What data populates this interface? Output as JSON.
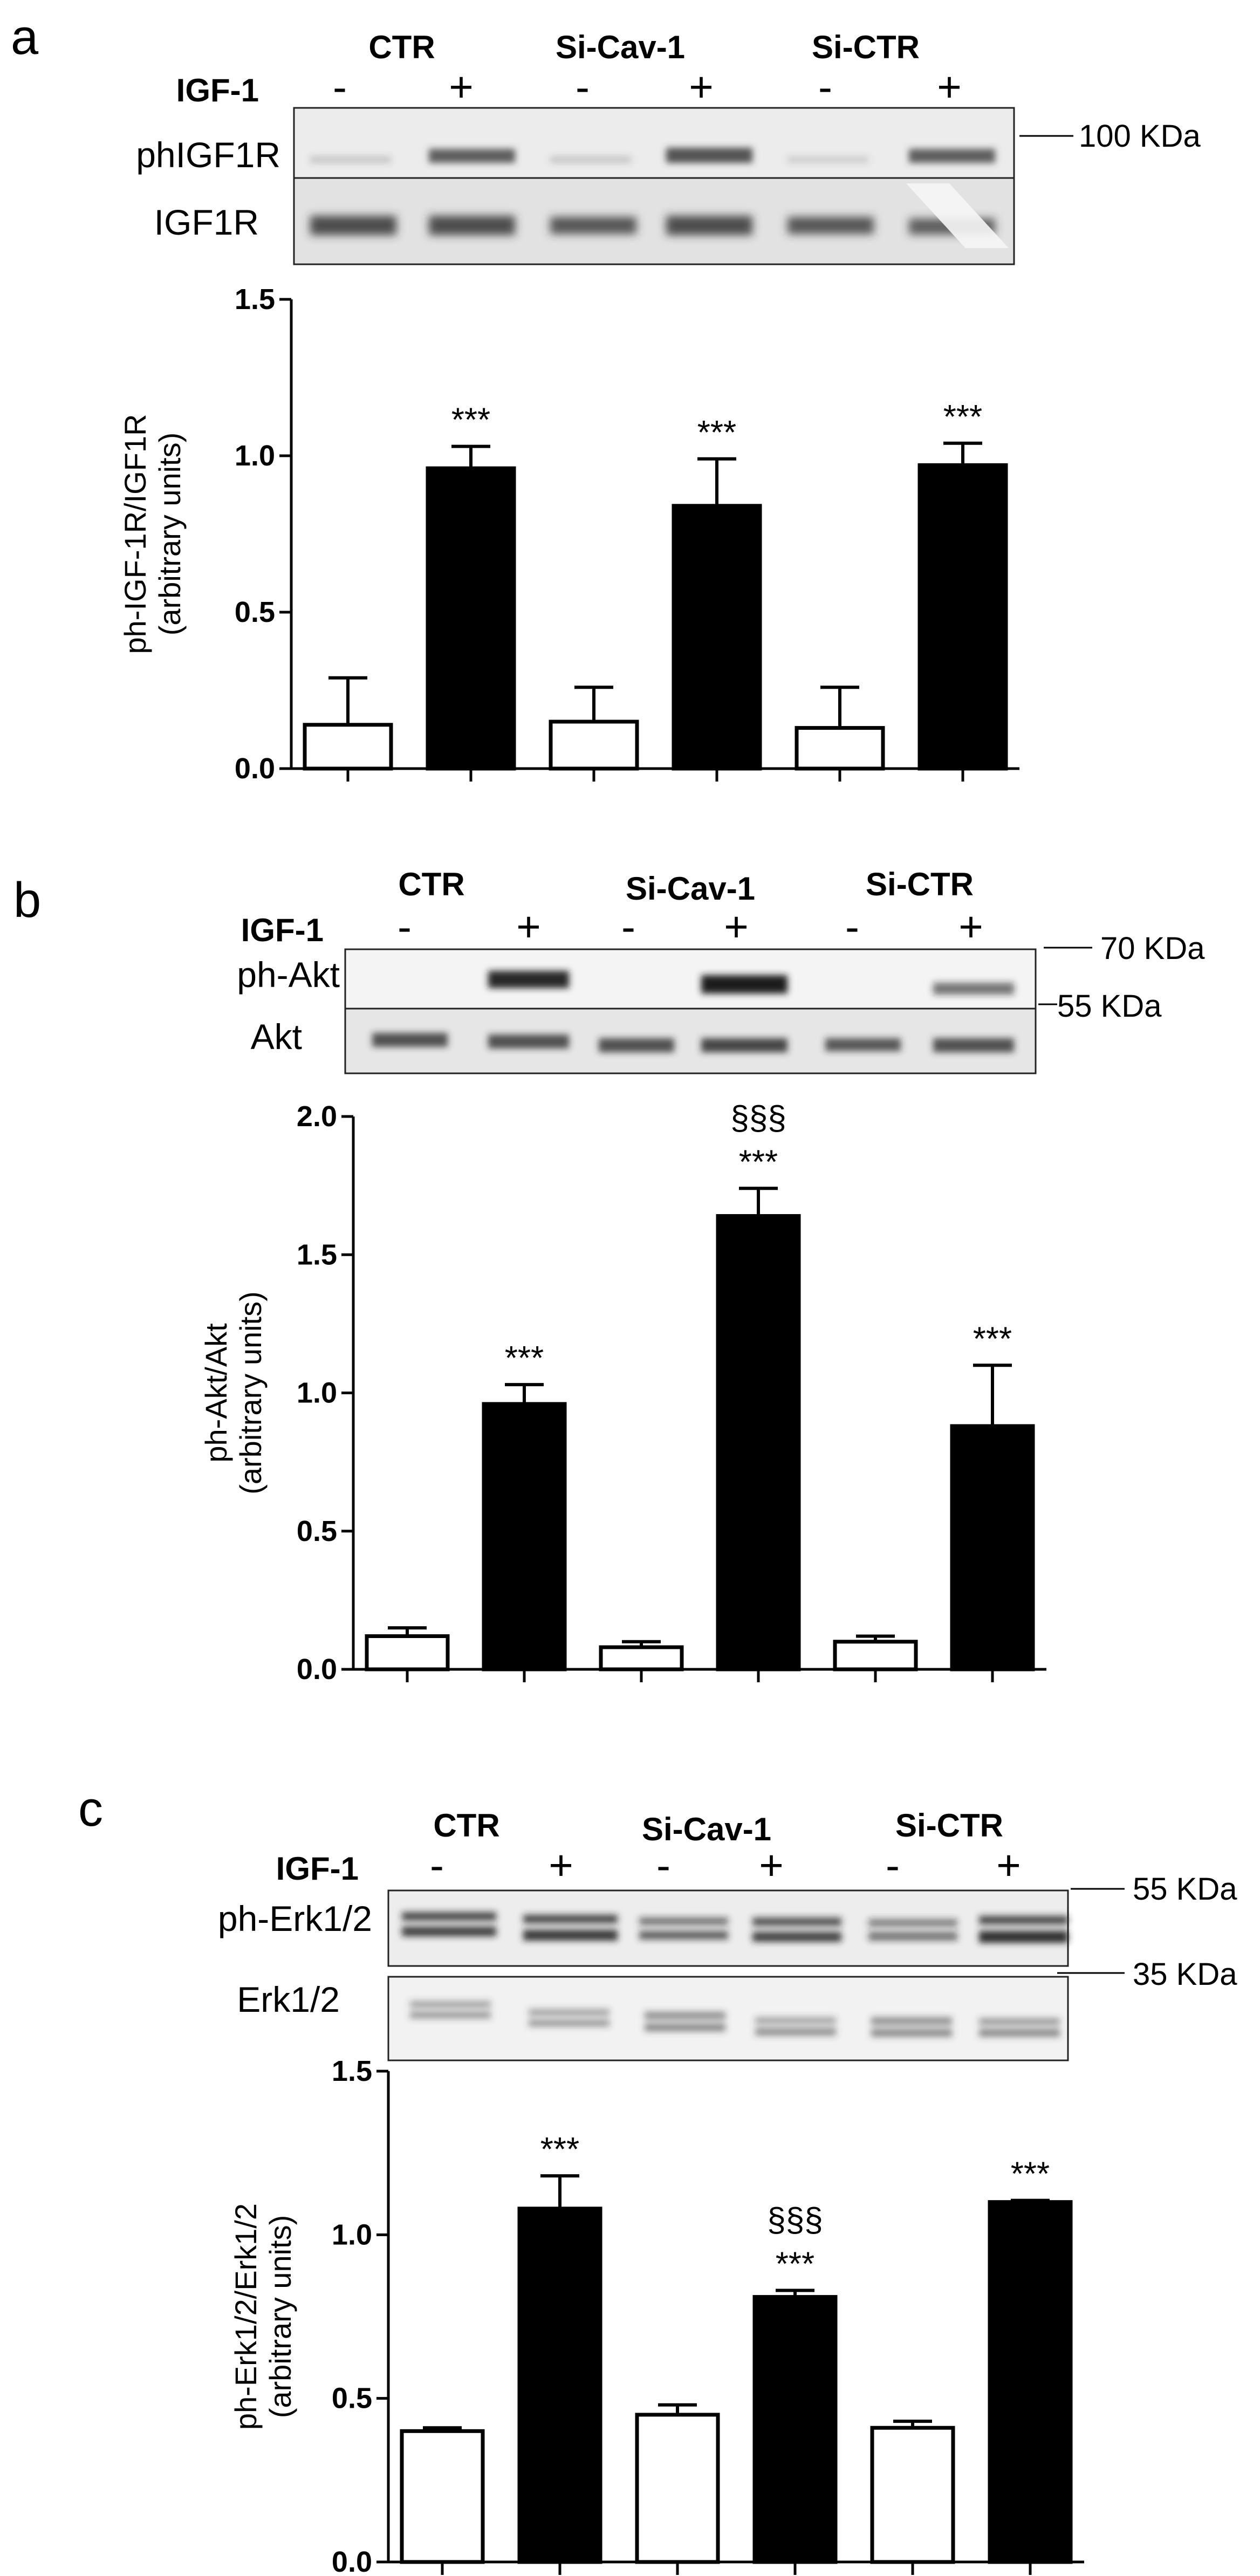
{
  "panels": [
    {
      "label": "a",
      "groups": [
        "CTR",
        "Si-Cav-1",
        "Si-CTR"
      ],
      "treatment_label": "IGF-1",
      "treatment_signs": [
        "-",
        "+",
        "-",
        "+",
        "-",
        "+"
      ],
      "blot_rows": [
        "phIGF1R",
        "IGF1R"
      ],
      "markers": [
        "100 KDa"
      ]
    },
    {
      "label": "b",
      "groups": [
        "CTR",
        "Si-Cav-1",
        "Si-CTR"
      ],
      "treatment_label": "IGF-1",
      "treatment_signs": [
        "-",
        "+",
        "-",
        "+",
        "-",
        "+"
      ],
      "blot_rows": [
        "ph-Akt",
        "Akt"
      ],
      "markers": [
        "70 KDa",
        "55 KDa"
      ]
    },
    {
      "label": "c",
      "groups": [
        "CTR",
        "Si-Cav-1",
        "Si-CTR"
      ],
      "treatment_label": "IGF-1",
      "treatment_signs": [
        "-",
        "+",
        "-",
        "+",
        "-",
        "+"
      ],
      "blot_rows": [
        "ph-Erk1/2",
        "Erk1/2"
      ],
      "markers": [
        "55 KDa",
        "35 KDa"
      ]
    }
  ],
  "chart_data": [
    {
      "type": "bar",
      "categories": [
        "",
        "",
        "",
        "",
        "",
        ""
      ],
      "values": [
        0.14,
        0.96,
        0.15,
        0.84,
        0.13,
        0.97
      ],
      "errors": [
        0.15,
        0.07,
        0.11,
        0.15,
        0.13,
        0.07
      ],
      "fills": [
        "#ffffff",
        "#000000",
        "#ffffff",
        "#000000",
        "#ffffff",
        "#000000"
      ],
      "annotations": [
        "",
        "***",
        "",
        "***",
        "",
        "***"
      ],
      "title": "",
      "xlabel": "",
      "ylabel": "ph-IGF-1R/IGF1R",
      "ylabel2": "(arbitrary units)",
      "ylim": [
        0,
        1.5
      ],
      "yticks": [
        "0.0",
        "0.5",
        "1.0",
        "1.5"
      ]
    },
    {
      "type": "bar",
      "categories": [
        "",
        "",
        "",
        "",
        "",
        ""
      ],
      "values": [
        0.12,
        0.96,
        0.08,
        1.64,
        0.1,
        0.88
      ],
      "errors": [
        0.03,
        0.07,
        0.02,
        0.1,
        0.02,
        0.22
      ],
      "fills": [
        "#ffffff",
        "#000000",
        "#ffffff",
        "#000000",
        "#ffffff",
        "#000000"
      ],
      "annotations": [
        "",
        "***",
        "",
        "***",
        "",
        "***"
      ],
      "annotations2": [
        "",
        "",
        "",
        "§§§",
        "",
        ""
      ],
      "title": "",
      "xlabel": "",
      "ylabel": "ph-Akt/Akt",
      "ylabel2": "(arbitrary units)",
      "ylim": [
        0,
        2.0
      ],
      "yticks": [
        "0.0",
        "0.5",
        "1.0",
        "1.5",
        "2.0"
      ]
    },
    {
      "type": "bar",
      "categories": [
        "",
        "",
        "",
        "",
        "",
        ""
      ],
      "values": [
        0.4,
        1.08,
        0.45,
        0.81,
        0.41,
        1.1
      ],
      "errors": [
        0.01,
        0.1,
        0.03,
        0.02,
        0.02,
        0.005
      ],
      "fills": [
        "#ffffff",
        "#000000",
        "#ffffff",
        "#000000",
        "#ffffff",
        "#000000"
      ],
      "annotations": [
        "",
        "***",
        "",
        "***",
        "",
        "***"
      ],
      "annotations2": [
        "",
        "",
        "",
        "§§§",
        "",
        ""
      ],
      "title": "",
      "xlabel": "",
      "ylabel": "ph-Erk1/2/Erk1/2",
      "ylabel2": "(arbitrary units)",
      "ylim": [
        0,
        1.5
      ],
      "yticks": [
        "0.0",
        "0.5",
        "1.0",
        "1.5"
      ]
    }
  ]
}
